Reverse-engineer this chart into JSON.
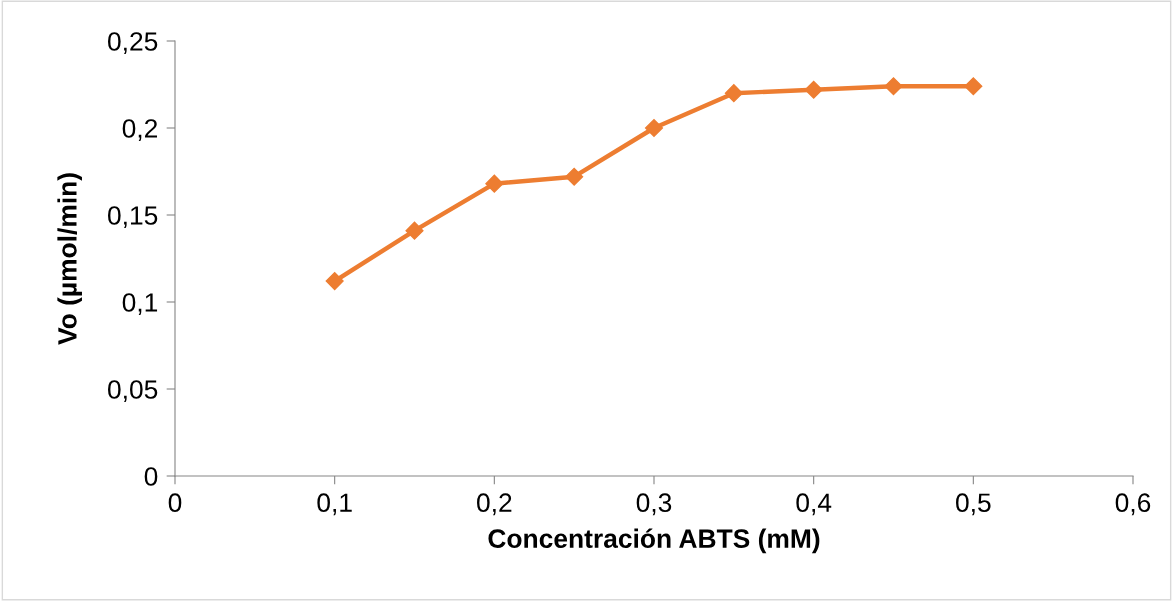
{
  "chart_data": {
    "type": "line",
    "xlabel": "Concentración ABTS (mM)",
    "ylabel": "Vo (µmol/min)",
    "x": [
      0.1,
      0.15,
      0.2,
      0.25,
      0.3,
      0.35,
      0.4,
      0.45,
      0.5
    ],
    "series": [
      {
        "color": "#ed7d31",
        "values": [
          0.112,
          0.141,
          0.168,
          0.172,
          0.2,
          0.22,
          0.222,
          0.224,
          0.224
        ]
      }
    ],
    "xlim": [
      0,
      0.6
    ],
    "ylim": [
      0,
      0.25
    ],
    "xticks": [
      0,
      {
        "value": 0.1,
        "label": "0,1"
      },
      {
        "value": 0.2,
        "label": "0,2"
      },
      {
        "value": 0.3,
        "label": "0,3"
      },
      {
        "value": 0.4,
        "label": "0,4"
      },
      {
        "value": 0.5,
        "label": "0,5"
      },
      {
        "value": 0.6,
        "label": "0,6"
      }
    ],
    "yticks": [
      0,
      {
        "value": 0.05,
        "label": "0,05"
      },
      {
        "value": 0.1,
        "label": "0,1"
      },
      {
        "value": 0.15,
        "label": "0,15"
      },
      {
        "value": 0.2,
        "label": "0,2"
      },
      {
        "value": 0.25,
        "label": "0,25"
      }
    ],
    "grid": false,
    "marker": "diamond",
    "line_style": "solid"
  }
}
